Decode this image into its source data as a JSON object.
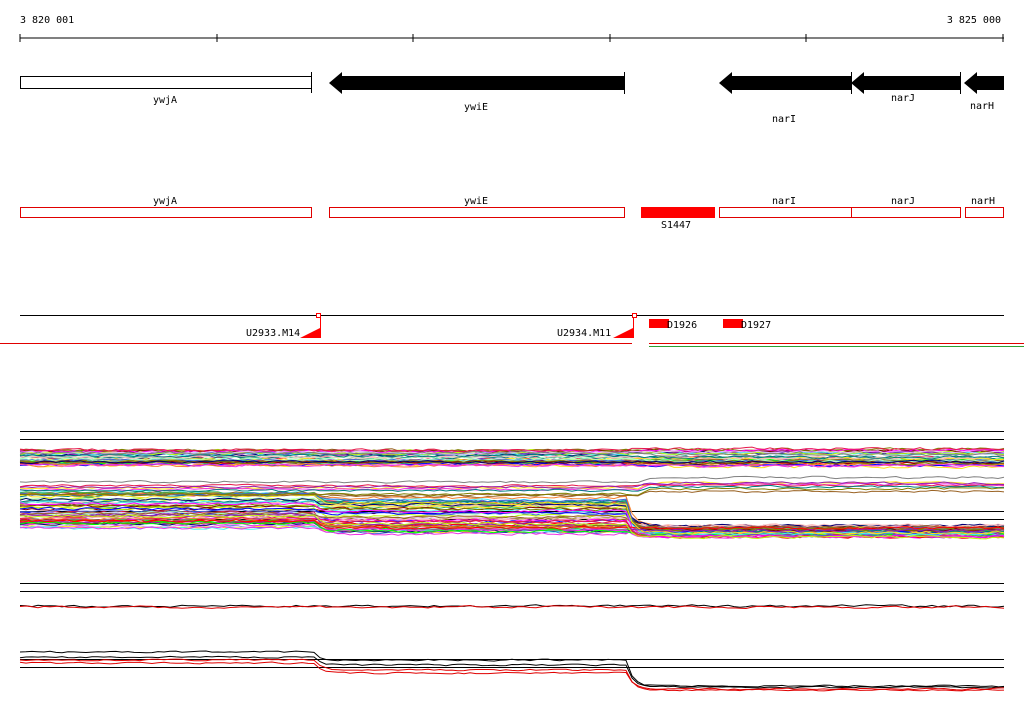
{
  "ruler": {
    "start_label": "3 820 001",
    "end_label": "3 825 000"
  },
  "genes": [
    {
      "name": "ywjA",
      "strand": "+",
      "style": "outline"
    },
    {
      "name": "ywiE",
      "strand": "-",
      "style": "filled"
    },
    {
      "name": "narI",
      "strand": "-",
      "style": "filled"
    },
    {
      "name": "narJ",
      "strand": "-",
      "style": "filled"
    },
    {
      "name": "narH",
      "strand": "-",
      "style": "filled"
    }
  ],
  "regions": [
    {
      "name": "ywjA",
      "style": "outline"
    },
    {
      "name": "ywiE",
      "style": "outline"
    },
    {
      "name": "S1447",
      "style": "filled"
    },
    {
      "name": "narI",
      "style": "outline"
    },
    {
      "name": "narJ",
      "style": "outline"
    },
    {
      "name": "narH",
      "style": "outline"
    }
  ],
  "features": [
    {
      "name": "U2933.M14",
      "kind": "terminator"
    },
    {
      "name": "U2934.M11",
      "kind": "terminator"
    },
    {
      "name": "D1926",
      "kind": "block"
    },
    {
      "name": "D1927",
      "kind": "block"
    }
  ],
  "colors": {
    "gene_fill": "#000000",
    "region_stroke": "#e00000",
    "feature_fill": "#ff0000",
    "track_line_red": "#e00000",
    "track_line_green": "#2e9e2e",
    "palette": [
      "#e6194b",
      "#3cb44b",
      "#ffe119",
      "#4363d8",
      "#f58231",
      "#911eb4",
      "#46f0f0",
      "#f032e6",
      "#bcf60c",
      "#fabebe",
      "#008080",
      "#e6beff",
      "#9a6324",
      "#800000",
      "#aaffc3",
      "#808000",
      "#000075",
      "#808080",
      "#ff00ff",
      "#00ff00",
      "#0000ff",
      "#ff0000"
    ]
  }
}
